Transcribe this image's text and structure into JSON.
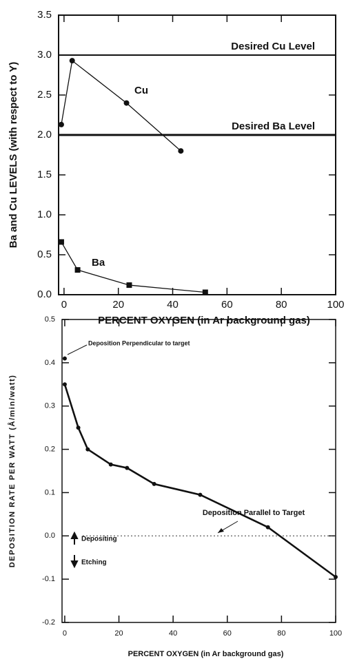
{
  "chart_data": [
    {
      "type": "line",
      "xlabel": "PERCENT OXYGEN (in Ar background gas)",
      "ylabel": "Ba and Cu LEVELS (with respect to Y)",
      "xlim": [
        -2,
        100
      ],
      "xticks": [
        0,
        20,
        40,
        60,
        80,
        100
      ],
      "ylim": [
        0,
        3.5
      ],
      "yticks": [
        {
          "value": 0,
          "label": "0.0"
        },
        0.5,
        {
          "value": 1,
          "label": "1.0"
        },
        1.5,
        {
          "value": 2,
          "label": "2.0"
        },
        2.5,
        {
          "value": 3,
          "label": "3.0"
        },
        3.5
      ],
      "series": [
        {
          "name": "Cu",
          "color": "#111111",
          "marker": "circle",
          "x": [
            -1,
            3,
            23,
            43
          ],
          "values": [
            2.13,
            2.93,
            2.4,
            1.8
          ]
        },
        {
          "name": "Ba",
          "color": "#111111",
          "marker": "square",
          "x": [
            -1,
            5,
            24,
            52
          ],
          "values": [
            0.66,
            0.31,
            0.12,
            0.03
          ]
        }
      ],
      "reference_lines": [
        {
          "value": 3,
          "label": "Desired Cu Level"
        },
        {
          "value": 2,
          "label": "Desired Ba Level"
        }
      ]
    },
    {
      "type": "line",
      "xlabel": "PERCENT OXYGEN (in Ar background gas)",
      "ylabel": "DEPOSITION RATE PER WATT (Å/min/watt)",
      "xlim": [
        -1,
        100
      ],
      "xticks": [
        0,
        20,
        40,
        60,
        80,
        100
      ],
      "ylim": [
        -0.2,
        0.5
      ],
      "yticks": [
        -0.2,
        -0.1,
        {
          "value": 0,
          "label": "0.0"
        },
        0.1,
        0.2,
        0.3,
        0.4,
        0.5
      ],
      "series": [
        {
          "name": "Deposition Perpendicular to target",
          "color": "#111111",
          "marker": "circle",
          "x": [
            0
          ],
          "values": [
            0.41
          ]
        },
        {
          "name": "Deposition Parallel to Target",
          "color": "#111111",
          "marker": "circle",
          "x": [
            0,
            5,
            8.5,
            17,
            23,
            33,
            50,
            75,
            100
          ],
          "values": [
            0.35,
            0.25,
            0.2,
            0.165,
            0.157,
            0.12,
            0.095,
            0.02,
            -0.095
          ]
        }
      ],
      "annotations": [
        "Depositing",
        "Etching"
      ]
    }
  ]
}
